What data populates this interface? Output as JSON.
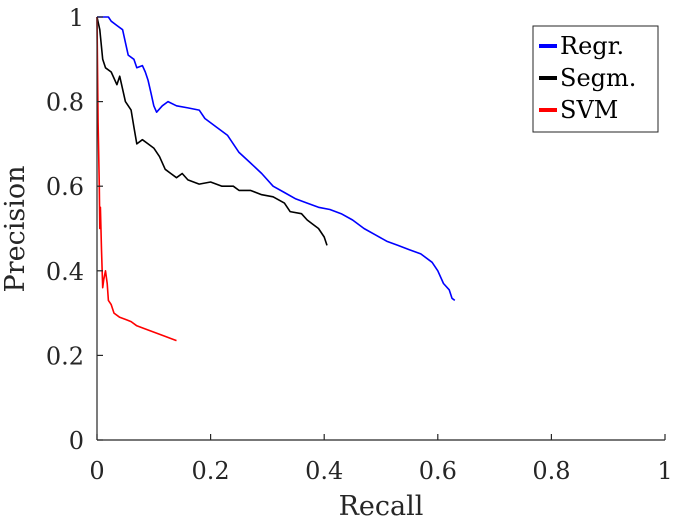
{
  "chart_data": {
    "type": "line",
    "title": "",
    "xlabel": "Recall",
    "ylabel": "Precision",
    "xlim": [
      0,
      1
    ],
    "ylim": [
      0,
      1
    ],
    "xticks": [
      "0",
      "0.2",
      "0.4",
      "0.6",
      "0.8",
      "1"
    ],
    "yticks": [
      "0",
      "0.2",
      "0.4",
      "0.6",
      "0.8",
      "1"
    ],
    "grid": false,
    "legend_position": "top-right",
    "series": [
      {
        "name": "Regr.",
        "color": "#0000ff",
        "points": [
          [
            0.0,
            1.0
          ],
          [
            0.02,
            1.0
          ],
          [
            0.025,
            0.99
          ],
          [
            0.035,
            0.98
          ],
          [
            0.045,
            0.97
          ],
          [
            0.05,
            0.94
          ],
          [
            0.055,
            0.91
          ],
          [
            0.065,
            0.9
          ],
          [
            0.07,
            0.88
          ],
          [
            0.08,
            0.885
          ],
          [
            0.085,
            0.87
          ],
          [
            0.09,
            0.85
          ],
          [
            0.095,
            0.82
          ],
          [
            0.1,
            0.79
          ],
          [
            0.105,
            0.775
          ],
          [
            0.115,
            0.79
          ],
          [
            0.125,
            0.8
          ],
          [
            0.14,
            0.79
          ],
          [
            0.16,
            0.785
          ],
          [
            0.18,
            0.78
          ],
          [
            0.19,
            0.76
          ],
          [
            0.21,
            0.74
          ],
          [
            0.23,
            0.72
          ],
          [
            0.25,
            0.68
          ],
          [
            0.27,
            0.655
          ],
          [
            0.29,
            0.63
          ],
          [
            0.31,
            0.6
          ],
          [
            0.33,
            0.585
          ],
          [
            0.35,
            0.57
          ],
          [
            0.37,
            0.56
          ],
          [
            0.39,
            0.55
          ],
          [
            0.41,
            0.545
          ],
          [
            0.43,
            0.535
          ],
          [
            0.45,
            0.52
          ],
          [
            0.47,
            0.5
          ],
          [
            0.49,
            0.485
          ],
          [
            0.51,
            0.47
          ],
          [
            0.53,
            0.46
          ],
          [
            0.55,
            0.45
          ],
          [
            0.57,
            0.44
          ],
          [
            0.59,
            0.42
          ],
          [
            0.6,
            0.4
          ],
          [
            0.61,
            0.37
          ],
          [
            0.62,
            0.355
          ],
          [
            0.625,
            0.335
          ],
          [
            0.63,
            0.33
          ]
        ]
      },
      {
        "name": "Segm.",
        "color": "#000000",
        "points": [
          [
            0.0,
            1.0
          ],
          [
            0.005,
            0.97
          ],
          [
            0.01,
            0.9
          ],
          [
            0.015,
            0.88
          ],
          [
            0.025,
            0.87
          ],
          [
            0.035,
            0.84
          ],
          [
            0.04,
            0.86
          ],
          [
            0.05,
            0.8
          ],
          [
            0.06,
            0.78
          ],
          [
            0.065,
            0.74
          ],
          [
            0.07,
            0.7
          ],
          [
            0.08,
            0.71
          ],
          [
            0.09,
            0.7
          ],
          [
            0.1,
            0.69
          ],
          [
            0.11,
            0.67
          ],
          [
            0.12,
            0.64
          ],
          [
            0.13,
            0.63
          ],
          [
            0.14,
            0.62
          ],
          [
            0.15,
            0.63
          ],
          [
            0.16,
            0.615
          ],
          [
            0.18,
            0.605
          ],
          [
            0.2,
            0.61
          ],
          [
            0.22,
            0.6
          ],
          [
            0.24,
            0.6
          ],
          [
            0.25,
            0.59
          ],
          [
            0.27,
            0.59
          ],
          [
            0.29,
            0.58
          ],
          [
            0.31,
            0.575
          ],
          [
            0.33,
            0.56
          ],
          [
            0.34,
            0.54
          ],
          [
            0.36,
            0.535
          ],
          [
            0.37,
            0.52
          ],
          [
            0.38,
            0.51
          ],
          [
            0.39,
            0.5
          ],
          [
            0.4,
            0.48
          ],
          [
            0.405,
            0.46
          ]
        ]
      },
      {
        "name": "SVM",
        "color": "#ff0000",
        "points": [
          [
            0.0,
            1.0
          ],
          [
            0.002,
            0.75
          ],
          [
            0.004,
            0.6
          ],
          [
            0.005,
            0.5
          ],
          [
            0.006,
            0.55
          ],
          [
            0.008,
            0.45
          ],
          [
            0.01,
            0.36
          ],
          [
            0.012,
            0.38
          ],
          [
            0.015,
            0.4
          ],
          [
            0.018,
            0.37
          ],
          [
            0.02,
            0.33
          ],
          [
            0.025,
            0.32
          ],
          [
            0.03,
            0.3
          ],
          [
            0.04,
            0.29
          ],
          [
            0.05,
            0.285
          ],
          [
            0.06,
            0.28
          ],
          [
            0.07,
            0.27
          ],
          [
            0.08,
            0.265
          ],
          [
            0.09,
            0.26
          ],
          [
            0.1,
            0.255
          ],
          [
            0.11,
            0.25
          ],
          [
            0.12,
            0.245
          ],
          [
            0.13,
            0.24
          ],
          [
            0.14,
            0.235
          ]
        ]
      }
    ]
  }
}
